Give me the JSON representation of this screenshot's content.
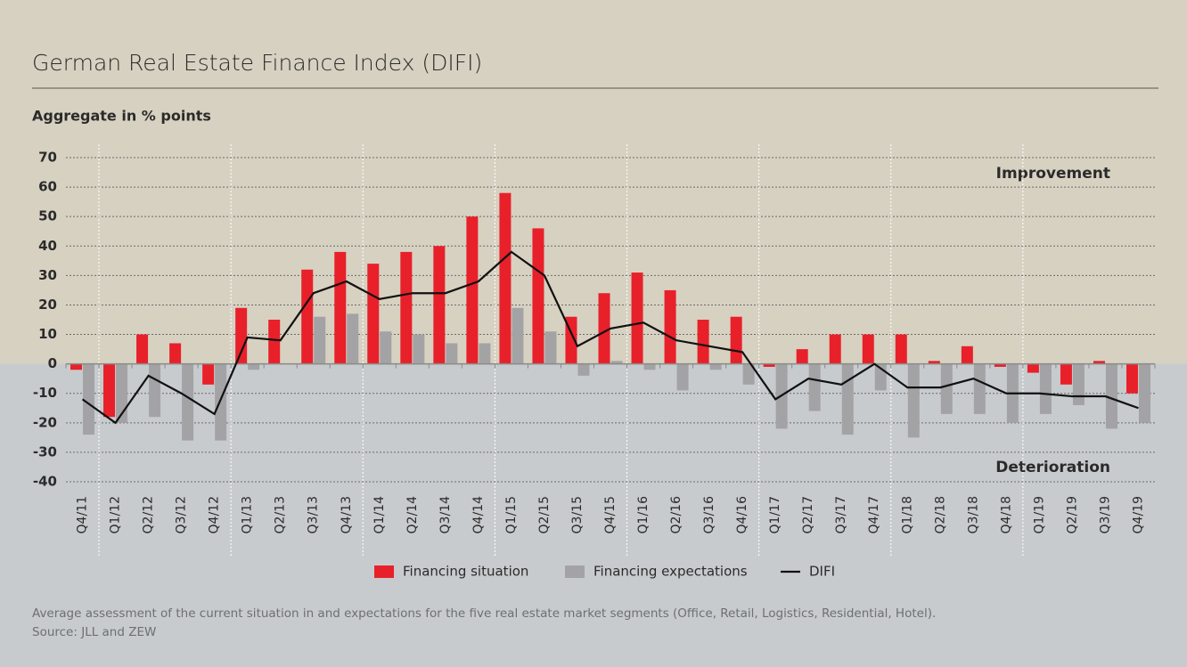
{
  "chart_data": {
    "type": "bar",
    "title": "German Real Estate Finance Index (DIFI)",
    "subtitle": "Aggregate in % points",
    "annotations": [
      "Improvement",
      "Deterioration"
    ],
    "footnote": "Average assessment of the current situation in and expectations for the five real estate market segments (Office, Retail, Logistics, Residential, Hotel).",
    "source": "Source: JLL and ZEW",
    "categories": [
      "Q4/11",
      "Q1/12",
      "Q2/12",
      "Q3/12",
      "Q4/12",
      "Q1/13",
      "Q2/13",
      "Q3/13",
      "Q4/13",
      "Q1/14",
      "Q2/14",
      "Q3/14",
      "Q4/14",
      "Q1/15",
      "Q2/15",
      "Q3/15",
      "Q4/15",
      "Q1/16",
      "Q2/16",
      "Q3/16",
      "Q4/16",
      "Q1/17",
      "Q2/17",
      "Q3/17",
      "Q4/17",
      "Q1/18",
      "Q2/18",
      "Q3/18",
      "Q4/18",
      "Q1/19",
      "Q2/19",
      "Q3/19",
      "Q4/19"
    ],
    "series": [
      {
        "name": "Financing situation",
        "color": "#e8202a",
        "type": "bar",
        "values": [
          -2,
          -18,
          10,
          7,
          -7,
          19,
          15,
          32,
          38,
          34,
          38,
          40,
          50,
          58,
          46,
          16,
          24,
          31,
          25,
          15,
          16,
          -1,
          5,
          10,
          10,
          10,
          1,
          6,
          -1,
          -3,
          -7,
          1,
          -10
        ]
      },
      {
        "name": "Financing expectations",
        "color": "#a3a3a5",
        "type": "bar",
        "values": [
          -24,
          -20,
          -18,
          -26,
          -26,
          -2,
          0,
          16,
          17,
          11,
          10,
          7,
          7,
          19,
          11,
          -4,
          1,
          -2,
          -9,
          -2,
          -7,
          -22,
          -16,
          -24,
          -9,
          -25,
          -17,
          -17,
          -20,
          -17,
          -14,
          -22,
          -20
        ]
      },
      {
        "name": "DIFI",
        "color": "#111111",
        "type": "line",
        "values": [
          -12,
          -20,
          -4,
          -10,
          -17,
          9,
          8,
          24,
          28,
          22,
          24,
          24,
          28,
          38,
          30,
          6,
          12,
          14,
          8,
          6,
          4,
          -12,
          -5,
          -7,
          0,
          -8,
          -8,
          -5,
          -10,
          -10,
          -11,
          -11,
          -15
        ]
      }
    ],
    "ylim": [
      -40,
      70
    ],
    "yticks": [
      -40,
      -30,
      -20,
      -10,
      0,
      10,
      20,
      30,
      40,
      50,
      60,
      70
    ],
    "grid": true,
    "legend": "bottom"
  }
}
